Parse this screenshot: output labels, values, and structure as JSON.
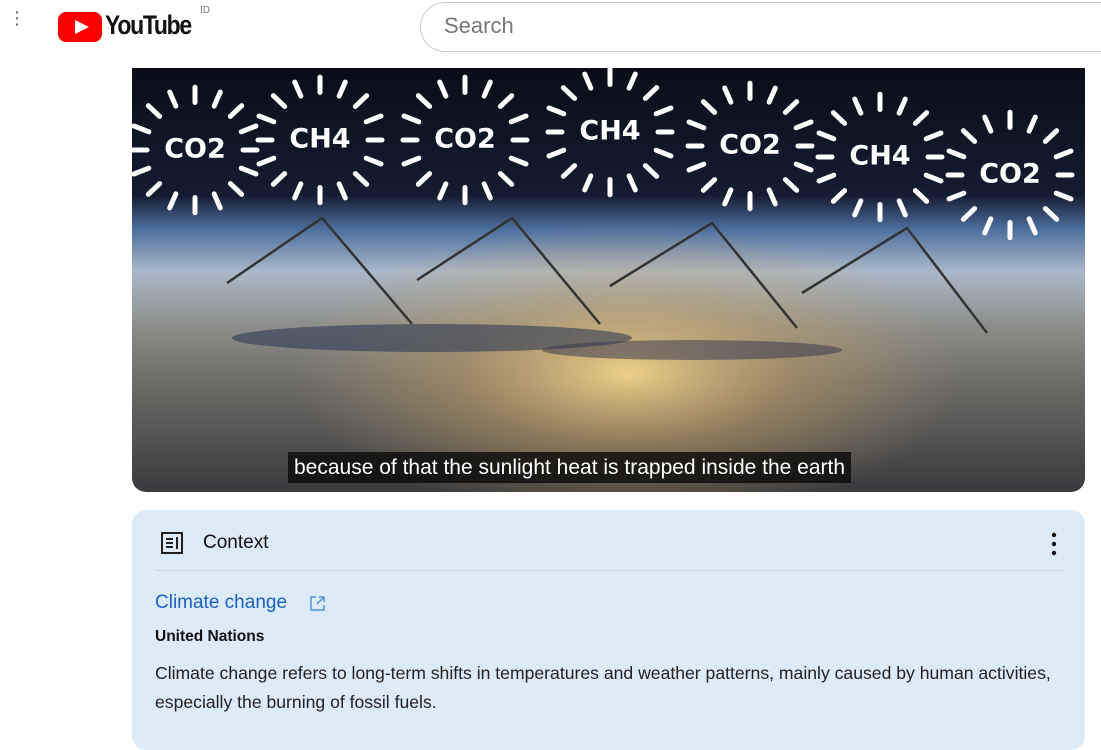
{
  "header": {
    "logo": "YouTube",
    "region": "ID",
    "search_placeholder": "Search"
  },
  "video": {
    "overlay_labels": [
      "CO2",
      "CH4",
      "CO2",
      "CH4",
      "CO2",
      "CH4",
      "CO2"
    ],
    "caption": "because of that the sunlight heat is trapped inside the earth"
  },
  "context_panel": {
    "heading": "Context",
    "link": "Climate change",
    "source": "United Nations",
    "description": "Climate change refers to long-term shifts in temperatures and weather patterns, mainly caused by human activities, especially the burning of fossil fuels."
  }
}
